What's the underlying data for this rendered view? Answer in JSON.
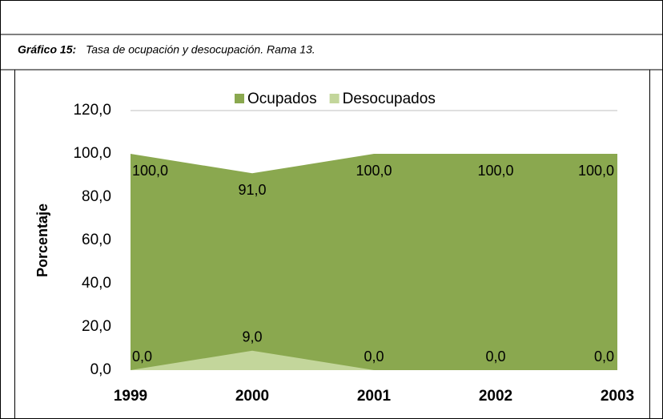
{
  "chart_data": {
    "type": "area",
    "title_prefix": "Gráfico 15:",
    "title": "Tasa de ocupación y desocupación. Rama 13.",
    "y_label": "Porcentaje",
    "categories": [
      "1999",
      "2000",
      "2001",
      "2002",
      "2003"
    ],
    "series": [
      {
        "name": "Ocupados",
        "color": "#8aa84f",
        "values": [
          100,
          91,
          100,
          100,
          100
        ],
        "value_labels": [
          "100,0",
          "91,0",
          "100,0",
          "100,0",
          "100,0"
        ]
      },
      {
        "name": "Desocupados",
        "color": "#c3d69b",
        "values": [
          0,
          9,
          0,
          0,
          0
        ],
        "value_labels": [
          "0,0",
          "9,0",
          "0,0",
          "0,0",
          "0,0"
        ]
      }
    ],
    "ylim": [
      0,
      120
    ],
    "yticks": [
      {
        "value": 0,
        "label": "0,0"
      },
      {
        "value": 20,
        "label": "20,0"
      },
      {
        "value": 40,
        "label": "40,0"
      },
      {
        "value": 60,
        "label": "60,0"
      },
      {
        "value": 80,
        "label": "80,0"
      },
      {
        "value": 100,
        "label": "100,0"
      },
      {
        "value": 120,
        "label": "120,0"
      }
    ],
    "legend": "top",
    "grid": false
  }
}
